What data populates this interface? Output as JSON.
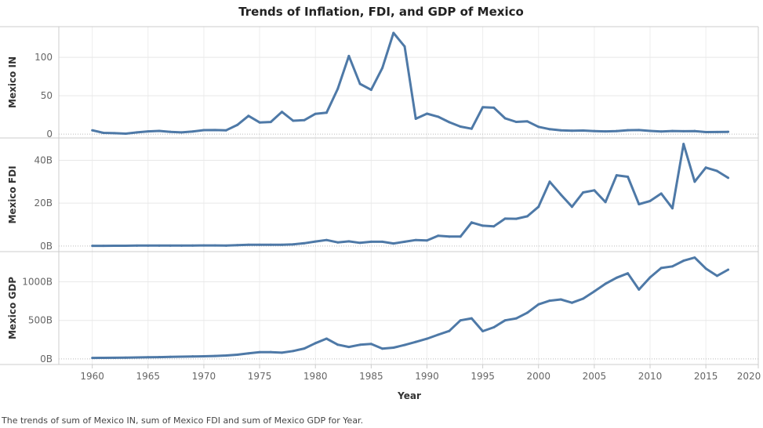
{
  "chart_data": {
    "type": "line",
    "title": "Trends of Inflation, FDI, and GDP of Mexico",
    "xlabel": "Year",
    "caption": "The trends of sum of Mexico IN, sum of Mexico FDI and sum of Mexico GDP for Year.",
    "x_ticks": [
      "1960",
      "1965",
      "1970",
      "1975",
      "1980",
      "1985",
      "1990",
      "1995",
      "2000",
      "2005",
      "2010",
      "2015",
      "2020"
    ],
    "xlim": [
      1957,
      2019.7
    ],
    "grid": true,
    "line_color": "#4e79a7",
    "x": [
      1960,
      1961,
      1962,
      1963,
      1964,
      1965,
      1966,
      1967,
      1968,
      1969,
      1970,
      1971,
      1972,
      1973,
      1974,
      1975,
      1976,
      1977,
      1978,
      1979,
      1980,
      1981,
      1982,
      1983,
      1984,
      1985,
      1986,
      1987,
      1988,
      1989,
      1990,
      1991,
      1992,
      1993,
      1994,
      1995,
      1996,
      1997,
      1998,
      1999,
      2000,
      2001,
      2002,
      2003,
      2004,
      2005,
      2006,
      2007,
      2008,
      2009,
      2010,
      2011,
      2012,
      2013,
      2014,
      2015,
      2016,
      2017
    ],
    "panels": [
      {
        "ylabel": "Mexico IN",
        "ylim": [
          -5,
          140
        ],
        "y_ticks": [
          {
            "v": 0,
            "label": "0"
          },
          {
            "v": 50,
            "label": "50"
          },
          {
            "v": 100,
            "label": "100"
          }
        ],
        "values": [
          5,
          1.6,
          1.2,
          0.6,
          2.3,
          3.6,
          4.2,
          3,
          2.3,
          3.4,
          5.2,
          5.3,
          5,
          12,
          23.8,
          15.2,
          15.8,
          29,
          17.5,
          18.2,
          26.4,
          27.9,
          58.9,
          101.8,
          65.5,
          57.7,
          86.2,
          131.8,
          114.2,
          20,
          26.7,
          22.7,
          15.5,
          9.8,
          7,
          35,
          34.4,
          20.6,
          15.9,
          16.6,
          9.5,
          6.4,
          5,
          4.5,
          4.7,
          4,
          3.6,
          4,
          5.1,
          5.3,
          4.2,
          3.4,
          4.1,
          3.8,
          4,
          2.7,
          2.8,
          3
        ]
      },
      {
        "ylabel": "Mexico FDI",
        "ylim": [
          -2.6,
          50.4
        ],
        "y_ticks": [
          {
            "v": 0,
            "label": "0B"
          },
          {
            "v": 20,
            "label": "20B"
          },
          {
            "v": 40,
            "label": "40B"
          }
        ],
        "unit": "B",
        "values": [
          0.1,
          0.1,
          0.15,
          0.15,
          0.2,
          0.2,
          0.2,
          0.2,
          0.2,
          0.25,
          0.3,
          0.3,
          0.2,
          0.4,
          0.6,
          0.6,
          0.6,
          0.6,
          0.8,
          1.3,
          2.1,
          2.8,
          1.7,
          2.2,
          1.5,
          2,
          2,
          1.2,
          2,
          2.8,
          2.6,
          4.8,
          4.4,
          4.4,
          11,
          9.5,
          9.2,
          12.8,
          12.7,
          13.9,
          18.3,
          30,
          24,
          18.3,
          25,
          26,
          20.5,
          33,
          32.3,
          19.5,
          21,
          24.5,
          17.6,
          47.6,
          30,
          36.6,
          35,
          31.8
        ]
      },
      {
        "ylabel": "Mexico GDP",
        "ylim": [
          -72,
          1392
        ],
        "y_ticks": [
          {
            "v": 0,
            "label": "0B"
          },
          {
            "v": 500,
            "label": "500B"
          },
          {
            "v": 1000,
            "label": "1000B"
          }
        ],
        "unit": "B",
        "values": [
          13,
          14,
          15,
          17,
          20,
          22,
          24,
          27,
          30,
          33,
          35,
          39,
          45,
          55,
          72,
          88,
          89,
          82,
          103,
          135,
          205,
          263,
          185,
          156,
          184,
          195,
          134,
          147,
          181,
          221,
          262,
          314,
          363,
          500,
          527,
          360,
          411,
          500,
          526,
          600,
          708,
          756,
          772,
          729,
          782,
          877,
          975,
          1053,
          1110,
          900,
          1058,
          1180,
          1201,
          1274,
          1315,
          1172,
          1078,
          1158
        ]
      }
    ]
  }
}
